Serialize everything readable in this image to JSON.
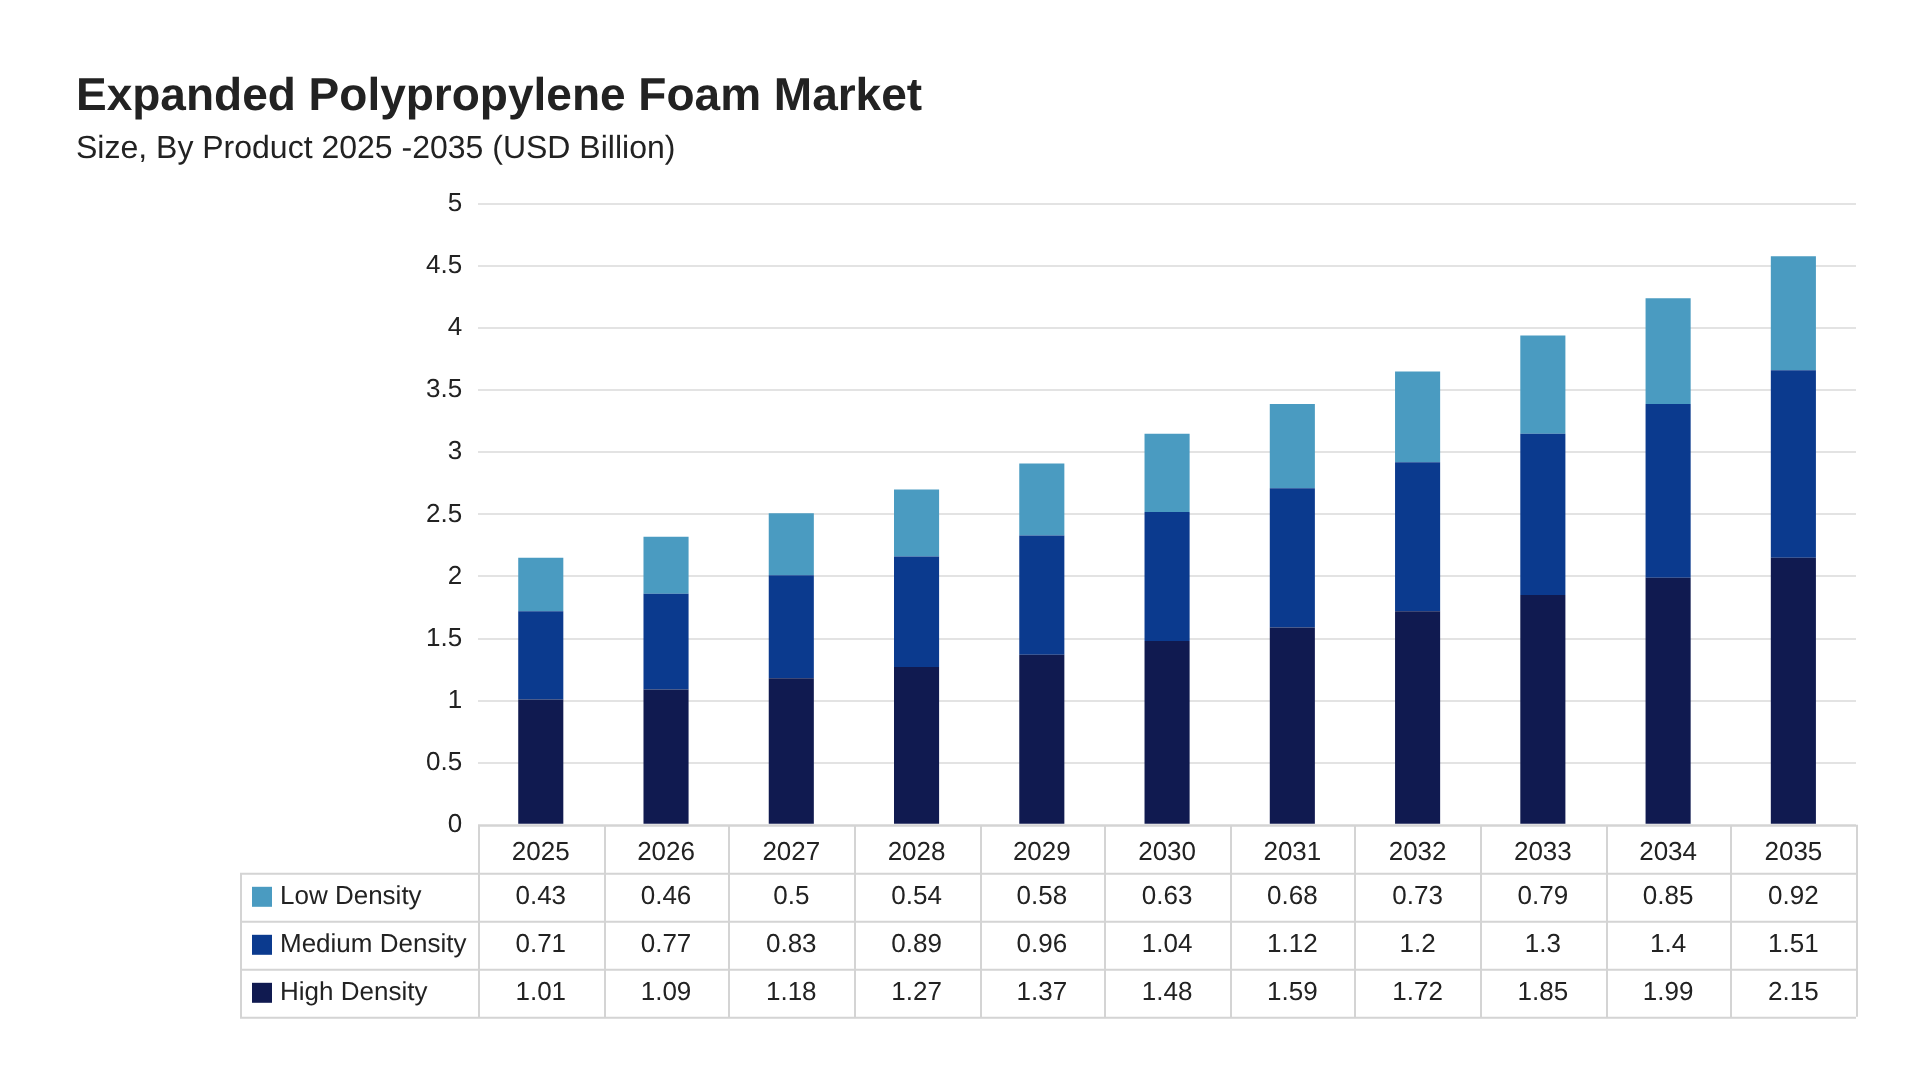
{
  "chart_data": {
    "type": "bar",
    "title": "Expanded Polypropylene Foam Market",
    "subtitle": "Size, By Product 2025 -2035 (USD Billion)",
    "categories": [
      "2025",
      "2026",
      "2027",
      "2028",
      "2029",
      "2030",
      "2031",
      "2032",
      "2033",
      "2034",
      "2035"
    ],
    "stacked": true,
    "data_labels": true,
    "legend": "bottom",
    "grid": "y",
    "ylim": [
      0,
      5
    ],
    "yticks": [
      0,
      0.5,
      1,
      1.5,
      2,
      2.5,
      3,
      3.5,
      4,
      4.5,
      5
    ],
    "series": [
      {
        "name": "High Density",
        "color": "#101a50",
        "values": [
          1.01,
          1.09,
          1.18,
          1.27,
          1.37,
          1.48,
          1.59,
          1.72,
          1.85,
          1.99,
          2.15
        ]
      },
      {
        "name": "Medium Density",
        "color": "#0b3a8e",
        "values": [
          0.71,
          0.77,
          0.83,
          0.89,
          0.96,
          1.04,
          1.12,
          1.2,
          1.3,
          1.4,
          1.51
        ]
      },
      {
        "name": "Low Density",
        "color": "#4a9bc1",
        "values": [
          0.43,
          0.46,
          0.5,
          0.54,
          0.58,
          0.63,
          0.68,
          0.73,
          0.79,
          0.85,
          0.92
        ]
      }
    ]
  }
}
